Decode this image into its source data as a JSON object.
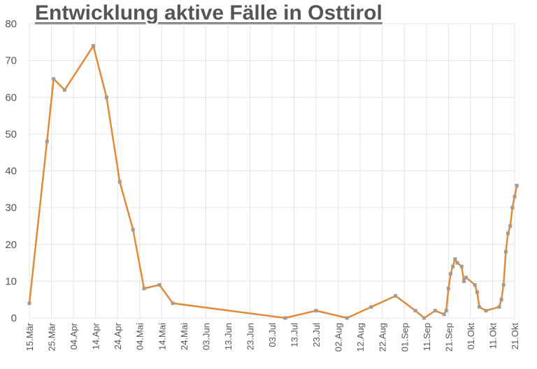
{
  "chart_data": {
    "type": "line",
    "title": "Entwicklung aktive Fälle in Osttirol",
    "xlabel": "",
    "ylabel": "",
    "ylim": [
      0,
      80
    ],
    "yticks": [
      0,
      10,
      20,
      30,
      40,
      50,
      60,
      70,
      80
    ],
    "grid": true,
    "legend": "none",
    "line_color": "#E08A3C",
    "marker_color": "#A89A8C",
    "x_range": [
      "2020-03-15",
      "2020-10-21"
    ],
    "x_tick_labels": [
      "15.Mär",
      "25.Mär",
      "04.Apr",
      "14.Apr",
      "24.Apr",
      "04.Mai",
      "14.Mai",
      "24.Mai",
      "03.Jun",
      "13.Jun",
      "23.Jun",
      "03.Jul",
      "13.Jul",
      "23.Jul",
      "02.Aug",
      "12.Aug",
      "22.Aug",
      "01.Sep",
      "11.Sep",
      "21.Sep",
      "01.Okt",
      "11.Okt",
      "21.Okt"
    ],
    "series": [
      {
        "x": [
          "2020-03-15",
          "2020-03-23",
          "2020-03-26",
          "2020-03-31",
          "2020-04-13",
          "2020-04-19",
          "2020-04-25",
          "2020-05-01",
          "2020-05-06",
          "2020-05-13",
          "2020-05-19",
          "2020-07-09",
          "2020-07-23",
          "2020-08-06",
          "2020-08-17",
          "2020-08-28",
          "2020-09-06",
          "2020-09-10",
          "2020-09-15",
          "2020-09-19",
          "2020-09-20",
          "2020-09-21",
          "2020-09-22",
          "2020-09-23",
          "2020-09-24",
          "2020-09-25",
          "2020-09-27",
          "2020-09-28",
          "2020-09-29",
          "2020-10-03",
          "2020-10-04",
          "2020-10-05",
          "2020-10-08",
          "2020-10-14",
          "2020-10-15",
          "2020-10-16",
          "2020-10-17",
          "2020-10-18",
          "2020-10-19",
          "2020-10-20",
          "2020-10-21",
          "2020-10-22"
        ],
        "values": [
          4,
          48,
          65,
          62,
          74,
          60,
          37,
          24,
          8,
          9,
          4,
          0,
          2,
          0,
          3,
          6,
          2,
          0,
          2,
          1,
          2,
          8,
          12,
          14,
          16,
          15,
          14,
          10,
          11,
          9,
          7,
          3,
          2,
          3,
          5,
          9,
          18,
          23,
          25,
          30,
          33,
          36
        ]
      }
    ]
  }
}
